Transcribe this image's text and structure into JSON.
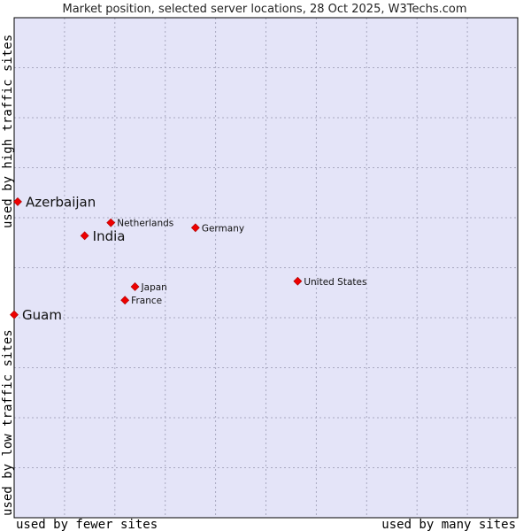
{
  "chart_data": {
    "type": "scatter",
    "title": "Market position, selected server locations, 28 Oct 2025, W3Techs.com",
    "xlabel_left": "used by fewer sites",
    "xlabel_right": "used by many sites",
    "ylabel_bottom": "used by low traffic sites",
    "ylabel_top": "used by high traffic sites",
    "xlim": [
      0,
      100
    ],
    "ylim": [
      0,
      100
    ],
    "grid": true,
    "points": [
      {
        "name": "Azerbaijan",
        "x": 0.7,
        "y": 63.2,
        "emphasis": true
      },
      {
        "name": "Netherlands",
        "x": 19.2,
        "y": 59.0,
        "emphasis": false
      },
      {
        "name": "India",
        "x": 14.0,
        "y": 56.4,
        "emphasis": true
      },
      {
        "name": "Germany",
        "x": 36.0,
        "y": 58.0,
        "emphasis": false
      },
      {
        "name": "United States",
        "x": 56.3,
        "y": 47.3,
        "emphasis": false
      },
      {
        "name": "Japan",
        "x": 24.0,
        "y": 46.2,
        "emphasis": false
      },
      {
        "name": "France",
        "x": 22.0,
        "y": 43.5,
        "emphasis": false
      },
      {
        "name": "Guam",
        "x": 0.0,
        "y": 40.6,
        "emphasis": true
      }
    ]
  },
  "colors": {
    "plot_bg": "#e4e4f8",
    "point": "#ee0000",
    "grid": "#a8a8c0",
    "frame": "#000000"
  }
}
